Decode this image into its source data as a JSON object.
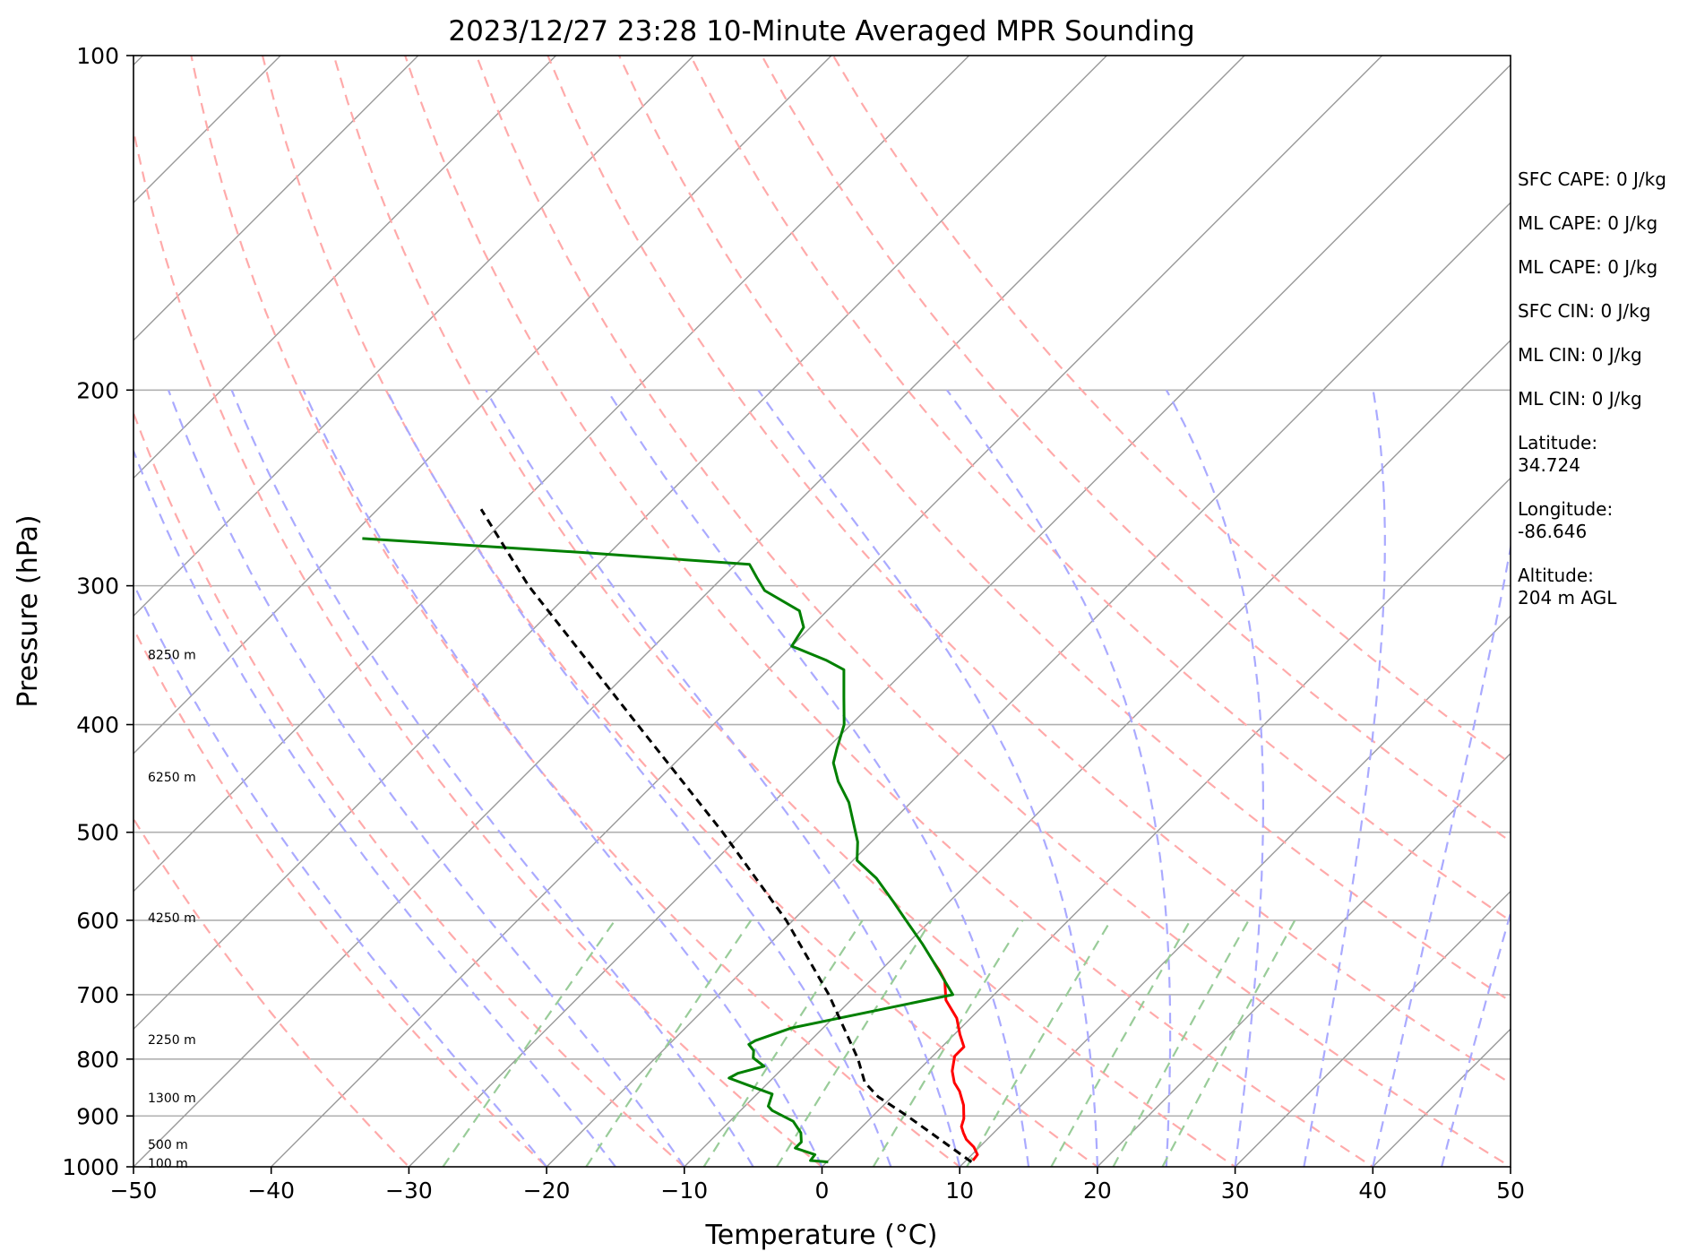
{
  "chart_data": {
    "type": "line",
    "subtype": "skew-T log-P sounding",
    "title": "2023/12/27 23:28 10-Minute Averaged MPR Sounding",
    "xlabel": "Temperature (°C)",
    "ylabel": "Pressure (hPa)",
    "xlim": [
      -50,
      50
    ],
    "ylim": [
      1000,
      100
    ],
    "y_scale": "log",
    "x_ticks": [
      -50,
      -40,
      -30,
      -20,
      -10,
      0,
      10,
      20,
      30,
      40,
      50
    ],
    "x_tick_labels": [
      "−50",
      "−40",
      "−30",
      "−20",
      "−10",
      "0",
      "10",
      "20",
      "30",
      "40",
      "50"
    ],
    "y_ticks": [
      100,
      200,
      300,
      400,
      500,
      600,
      700,
      800,
      900,
      1000
    ],
    "y_tick_labels": [
      "100",
      "200",
      "300",
      "400",
      "500",
      "600",
      "700",
      "800",
      "900",
      "1000"
    ],
    "height_labels": [
      {
        "p": 346,
        "label": "8250 m"
      },
      {
        "p": 446,
        "label": "6250 m"
      },
      {
        "p": 597,
        "label": "4250 m"
      },
      {
        "p": 768,
        "label": "2250 m"
      },
      {
        "p": 867,
        "label": "1300 m"
      },
      {
        "p": 955,
        "label": "500 m"
      },
      {
        "p": 993,
        "label": "100 m"
      }
    ],
    "series": [
      {
        "kind": "temperature",
        "color": "#ff0000",
        "points": [
          {
            "p": 987,
            "t": 10.5
          },
          {
            "p": 975,
            "t": 10.4
          },
          {
            "p": 960,
            "t": 9.6
          },
          {
            "p": 945,
            "t": 8.5
          },
          {
            "p": 932,
            "t": 7.8
          },
          {
            "p": 920,
            "t": 7.2
          },
          {
            "p": 905,
            "t": 6.8
          },
          {
            "p": 880,
            "t": 5.8
          },
          {
            "p": 855,
            "t": 4.5
          },
          {
            "p": 840,
            "t": 3.5
          },
          {
            "p": 820,
            "t": 2.5
          },
          {
            "p": 795,
            "t": 1.6
          },
          {
            "p": 780,
            "t": 1.6
          },
          {
            "p": 760,
            "t": 0.4
          },
          {
            "p": 735,
            "t": -1.0
          },
          {
            "p": 708,
            "t": -3.1
          },
          {
            "p": 680,
            "t": -4.6
          },
          {
            "p": 665,
            "t": -5.8
          },
          {
            "p": 655,
            "t": -6.7
          }
        ]
      },
      {
        "kind": "dewpoint",
        "color": "#008000",
        "points": [
          {
            "p": 990,
            "t": 0.1
          },
          {
            "p": 987,
            "t": -1.3
          },
          {
            "p": 975,
            "t": -1.4
          },
          {
            "p": 962,
            "t": -3.3
          },
          {
            "p": 950,
            "t": -3.3
          },
          {
            "p": 932,
            "t": -4.0
          },
          {
            "p": 910,
            "t": -5.4
          },
          {
            "p": 890,
            "t": -7.7
          },
          {
            "p": 882,
            "t": -8.3
          },
          {
            "p": 860,
            "t": -8.9
          },
          {
            "p": 845,
            "t": -11.2
          },
          {
            "p": 832,
            "t": -13.2
          },
          {
            "p": 824,
            "t": -12.9
          },
          {
            "p": 812,
            "t": -11.5
          },
          {
            "p": 798,
            "t": -12.9
          },
          {
            "p": 786,
            "t": -13.4
          },
          {
            "p": 776,
            "t": -14.2
          },
          {
            "p": 770,
            "t": -14.0
          },
          {
            "p": 750,
            "t": -12.3
          },
          {
            "p": 700,
            "t": -3.0
          },
          {
            "p": 655,
            "t": -6.7
          },
          {
            "p": 630,
            "t": -8.9
          },
          {
            "p": 600,
            "t": -11.8
          },
          {
            "p": 578,
            "t": -14.0
          },
          {
            "p": 550,
            "t": -17.0
          },
          {
            "p": 530,
            "t": -19.7
          },
          {
            "p": 510,
            "t": -21.0
          },
          {
            "p": 470,
            "t": -24.5
          },
          {
            "p": 450,
            "t": -26.8
          },
          {
            "p": 433,
            "t": -28.5
          },
          {
            "p": 420,
            "t": -29.3
          },
          {
            "p": 400,
            "t": -30.5
          },
          {
            "p": 378,
            "t": -32.5
          },
          {
            "p": 357,
            "t": -34.5
          },
          {
            "p": 350,
            "t": -36.5
          },
          {
            "p": 340,
            "t": -40.0
          },
          {
            "p": 327,
            "t": -40.5
          },
          {
            "p": 316,
            "t": -42.0
          },
          {
            "p": 303,
            "t": -46.0
          },
          {
            "p": 295,
            "t": -47.5
          },
          {
            "p": 287,
            "t": -49.0
          },
          {
            "p": 280,
            "t": -62.0
          },
          {
            "p": 272,
            "t": -79.0
          }
        ]
      },
      {
        "kind": "parcel",
        "color": "#000000",
        "dashed": true,
        "points": [
          {
            "p": 990,
            "t": 10.5
          },
          {
            "p": 900,
            "t": 2.5
          },
          {
            "p": 865,
            "t": -1.0
          },
          {
            "p": 840,
            "t": -3.0
          },
          {
            "p": 800,
            "t": -5.2
          },
          {
            "p": 700,
            "t": -12.0
          },
          {
            "p": 600,
            "t": -20.5
          },
          {
            "p": 500,
            "t": -31.5
          },
          {
            "p": 400,
            "t": -45.5
          },
          {
            "p": 300,
            "t": -63.5
          },
          {
            "p": 256,
            "t": -72.5
          }
        ]
      }
    ],
    "background_lines": {
      "isotherm_color": "#999999",
      "dry_adiabat_color": "#ffaaaa",
      "moist_adiabat_color": "#aaaaff",
      "mixing_ratio_color": "#99cc99"
    }
  },
  "annotations": [
    "SFC CAPE: 0 J/kg",
    "ML CAPE: 0 J/kg",
    "ML CAPE: 0 J/kg",
    "SFC CIN: 0 J/kg",
    "ML CIN: 0 J/kg",
    "ML CIN: 0 J/kg",
    "Latitude:\n34.724",
    "Longitude:\n-86.646",
    "Altitude:\n204 m AGL"
  ]
}
